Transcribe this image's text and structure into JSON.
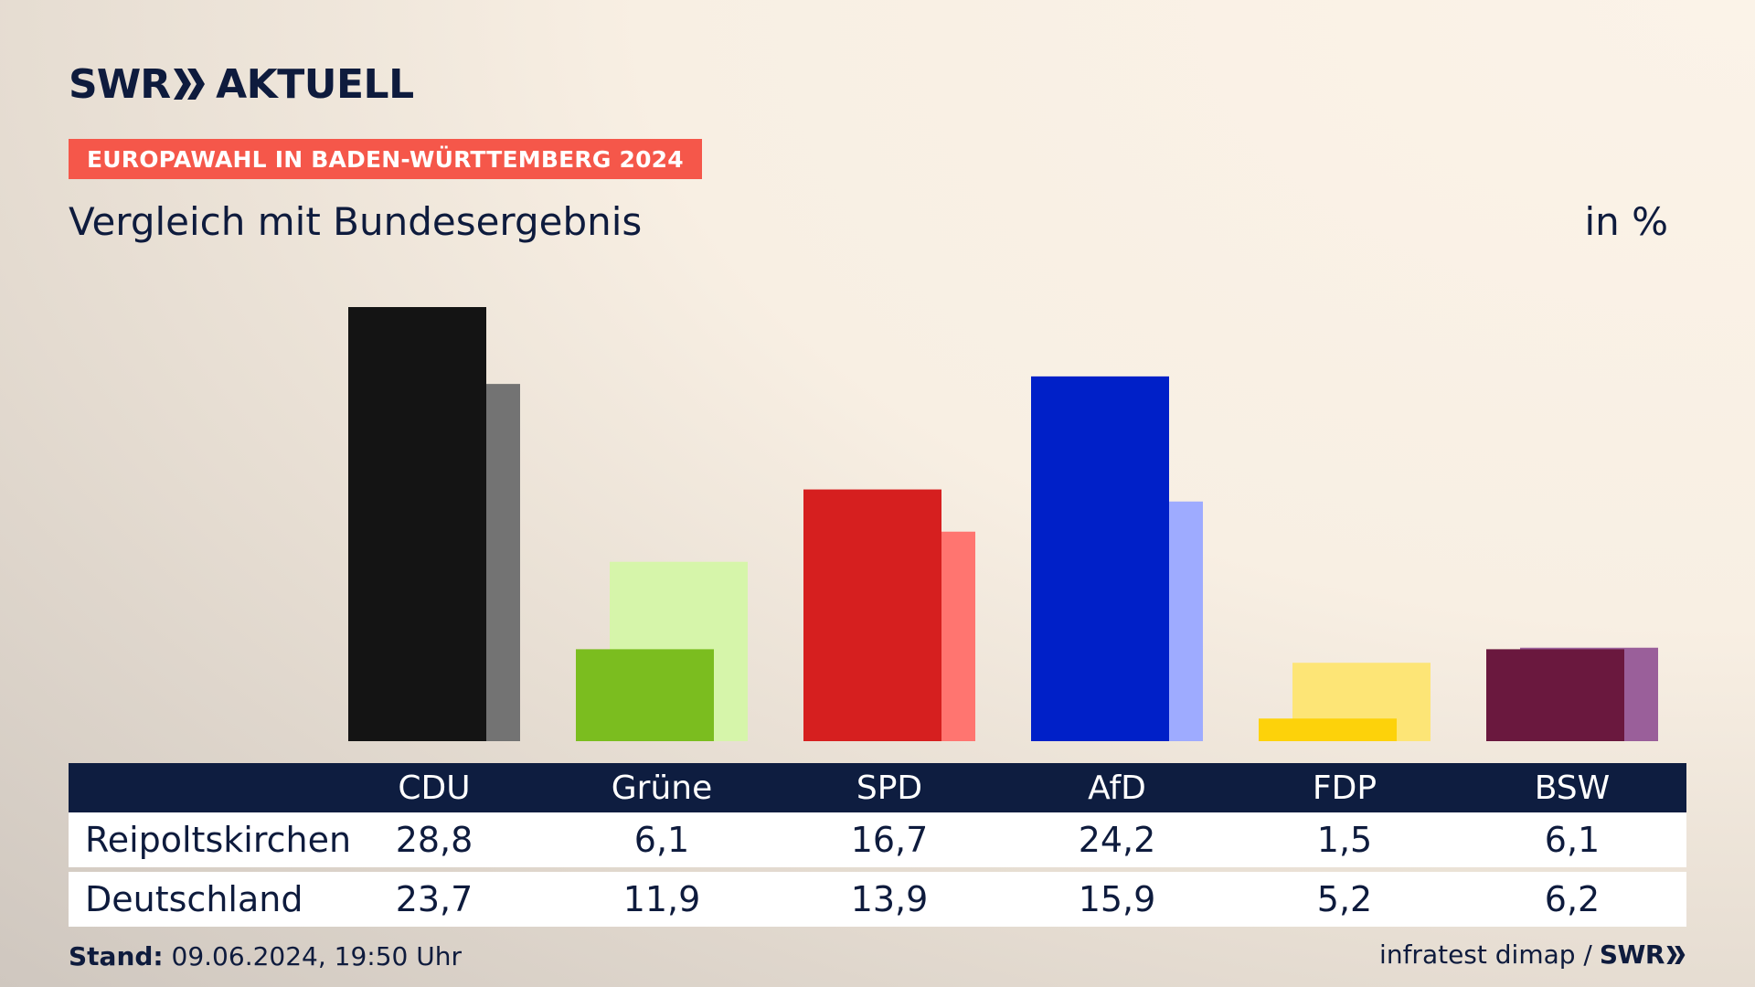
{
  "header": {
    "brand": "SWR",
    "product": "AKTUELL",
    "badge": "EUROPAWAHL IN BADEN-WÜRTTEMBERG 2024",
    "subtitle": "Vergleich mit Bundesergebnis",
    "unit": "in %"
  },
  "chart_data": {
    "type": "bar",
    "title": "Vergleich mit Bundesergebnis",
    "ylabel": "in %",
    "categories": [
      "CDU",
      "Grüne",
      "SPD",
      "AfD",
      "FDP",
      "BSW"
    ],
    "series": [
      {
        "name": "Reipoltskirchen",
        "values": [
          28.8,
          6.1,
          16.7,
          24.2,
          1.5,
          6.1
        ],
        "colors": [
          "#141414",
          "#7bbd1f",
          "#d61f1f",
          "#0020c8",
          "#fdd20a",
          "#6a183e"
        ]
      },
      {
        "name": "Deutschland",
        "values": [
          23.7,
          11.9,
          13.9,
          15.9,
          5.2,
          6.2
        ],
        "colors": [
          "#737373",
          "#d6f5aa",
          "#ff7570",
          "#9eabff",
          "#fde576",
          "#9a5f9a"
        ]
      }
    ],
    "ylim": [
      0,
      28.8
    ],
    "table": {
      "rows": [
        {
          "label": "Reipoltskirchen",
          "values": [
            "28,8",
            "6,1",
            "16,7",
            "24,2",
            "1,5",
            "6,1"
          ]
        },
        {
          "label": "Deutschland",
          "values": [
            "23,7",
            "11,9",
            "13,9",
            "15,9",
            "5,2",
            "6,2"
          ]
        }
      ]
    }
  },
  "footer": {
    "stand_label": "Stand:",
    "stand_value": "09.06.2024, 19:50 Uhr",
    "source": "infratest dimap /",
    "source_brand": "SWR"
  }
}
